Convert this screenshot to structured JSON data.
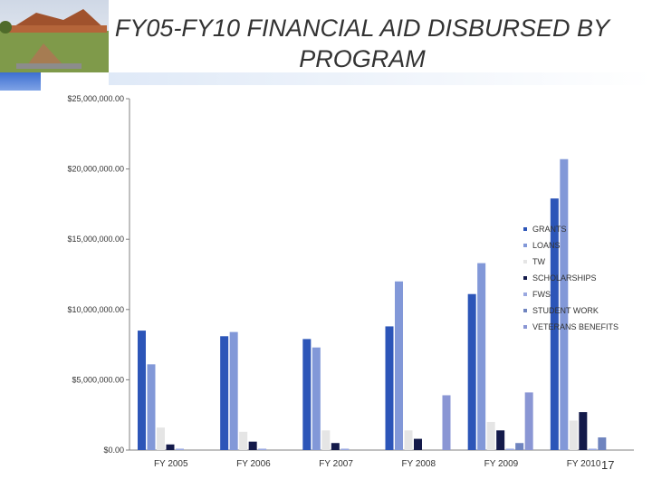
{
  "slide": {
    "title": "FY05-FY10 FINANCIAL AID DISBURSED BY PROGRAM",
    "page_number": "17"
  },
  "colors": {
    "GRANTS": "#2c55b8",
    "LOANS": "#8298d8",
    "TW": "#e5e5e5",
    "SCHOLARSHIPS": "#141a4a",
    "FWS": "#9aa8e0",
    "STUDENT WORK": "#6f84bf",
    "VETERANS BENEFITS": "#8a96d4"
  },
  "chart_data": {
    "type": "bar",
    "title": "FY05-FY10 FINANCIAL AID DISBURSED BY PROGRAM",
    "xlabel": "",
    "ylabel": "",
    "ylim": [
      0,
      25000000
    ],
    "y_ticks": [
      {
        "value": 0,
        "label": "$0.00"
      },
      {
        "value": 5000000,
        "label": "$5,000,000.00"
      },
      {
        "value": 10000000,
        "label": "$10,000,000.00"
      },
      {
        "value": 15000000,
        "label": "$15,000,000.00"
      },
      {
        "value": 20000000,
        "label": "$20,000,000.00"
      },
      {
        "value": 25000000,
        "label": "$25,000,000.00"
      }
    ],
    "grid": false,
    "legend_position": "right",
    "categories": [
      "FY 2005",
      "FY 2006",
      "FY 2007",
      "FY 2008",
      "FY 2009",
      "FY 2010"
    ],
    "series": [
      {
        "name": "GRANTS",
        "values": [
          8500000,
          8100000,
          7900000,
          8800000,
          11100000,
          17900000
        ]
      },
      {
        "name": "LOANS",
        "values": [
          6100000,
          8400000,
          7300000,
          12000000,
          13300000,
          20700000
        ]
      },
      {
        "name": "TW",
        "values": [
          1600000,
          1300000,
          1400000,
          1400000,
          2000000,
          2100000
        ]
      },
      {
        "name": "SCHOLARSHIPS",
        "values": [
          400000,
          600000,
          500000,
          800000,
          1400000,
          2700000
        ]
      },
      {
        "name": "FWS",
        "values": [
          100000,
          100000,
          100000,
          0,
          100000,
          100000
        ]
      },
      {
        "name": "STUDENT WORK",
        "values": [
          0,
          0,
          0,
          0,
          500000,
          900000
        ]
      },
      {
        "name": "VETERANS BENEFITS",
        "values": [
          0,
          0,
          0,
          3900000,
          4100000,
          0
        ]
      }
    ]
  }
}
